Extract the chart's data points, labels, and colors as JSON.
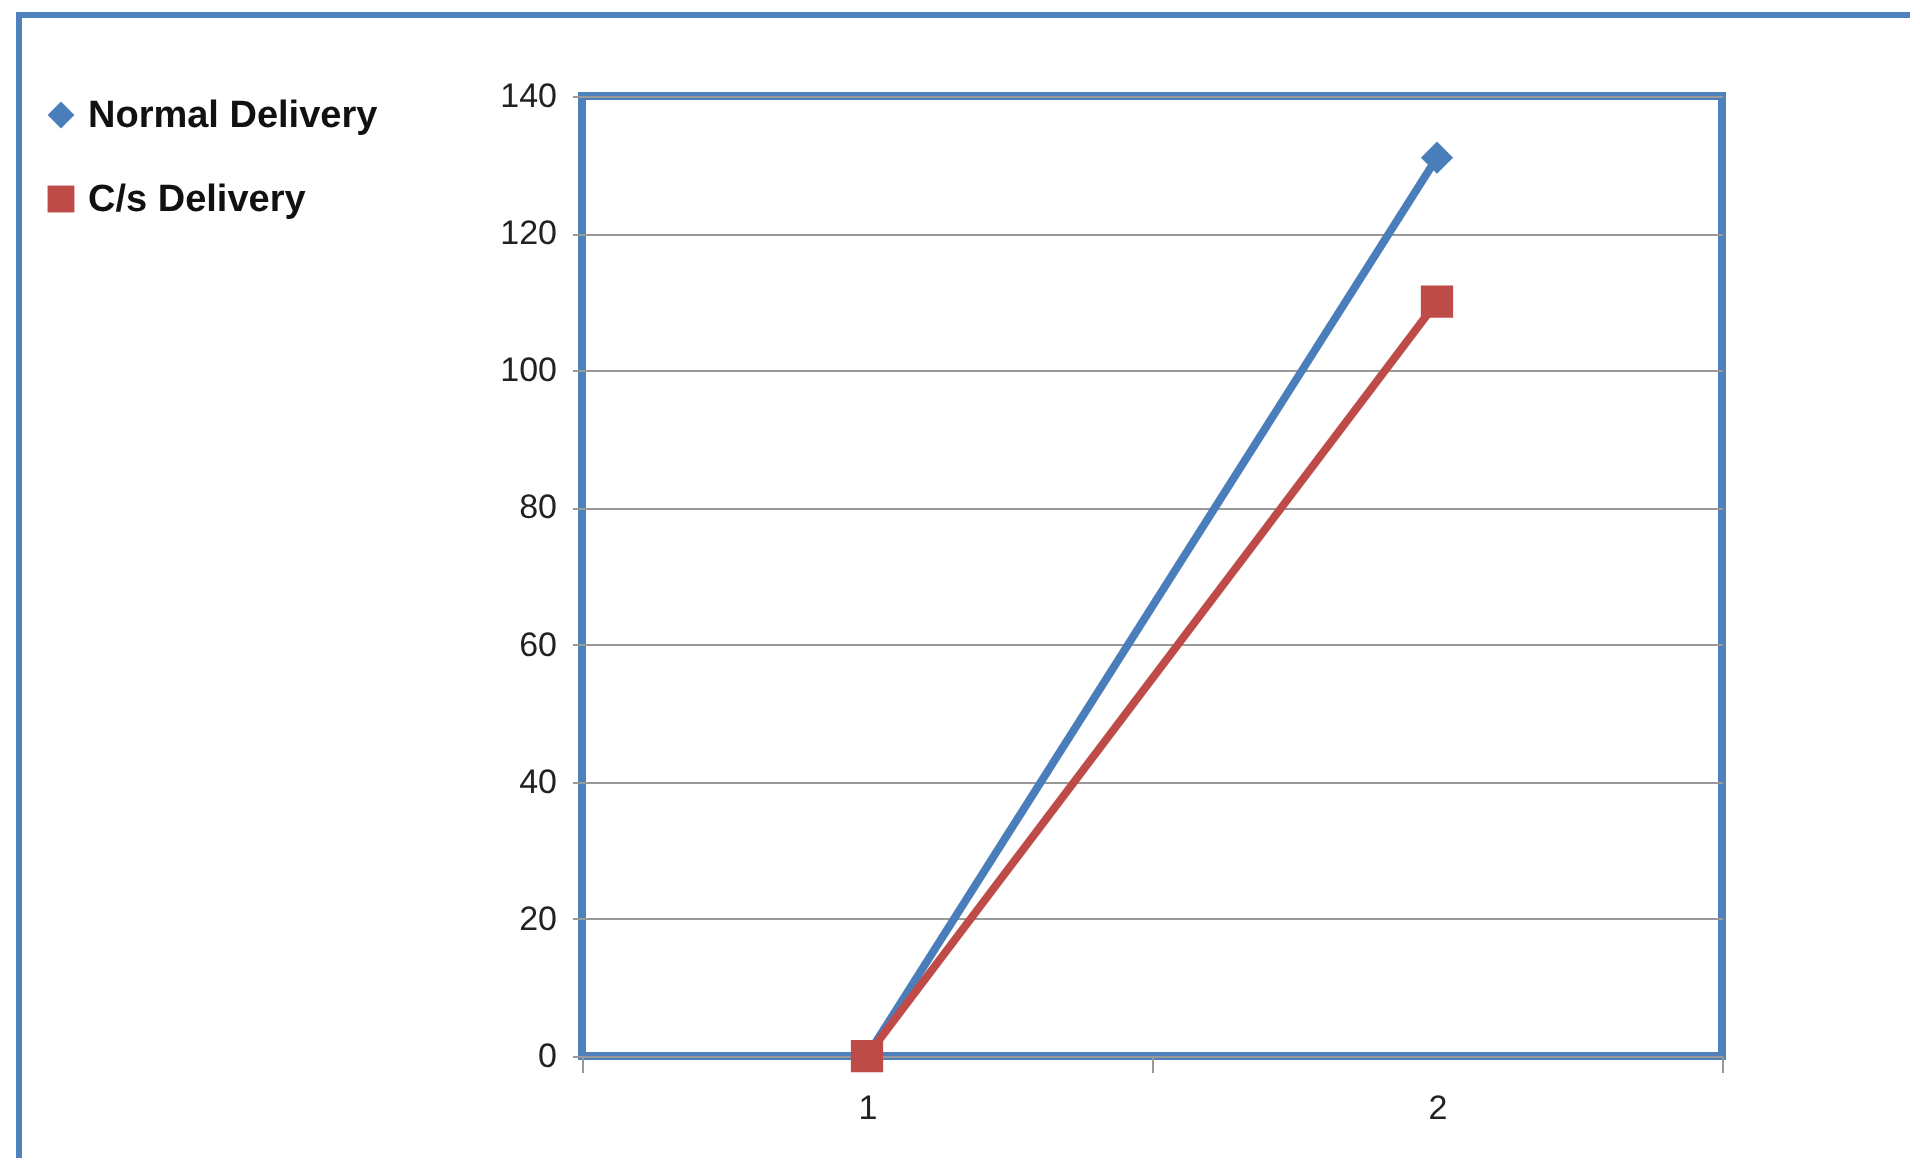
{
  "chart_data": {
    "type": "line",
    "categories": [
      "1",
      "2"
    ],
    "series": [
      {
        "name": "Normal Delivery",
        "color": "#4a7ebb",
        "marker": "diamond",
        "values": [
          0,
          131
        ]
      },
      {
        "name": "C/s Delivery",
        "color": "#be4b48",
        "marker": "square",
        "values": [
          0,
          110
        ]
      }
    ],
    "ylim": [
      0,
      140
    ],
    "yticks": [
      0,
      20,
      40,
      60,
      80,
      100,
      120,
      140
    ],
    "grid": "y",
    "legend": "left",
    "line_style": "solid"
  }
}
